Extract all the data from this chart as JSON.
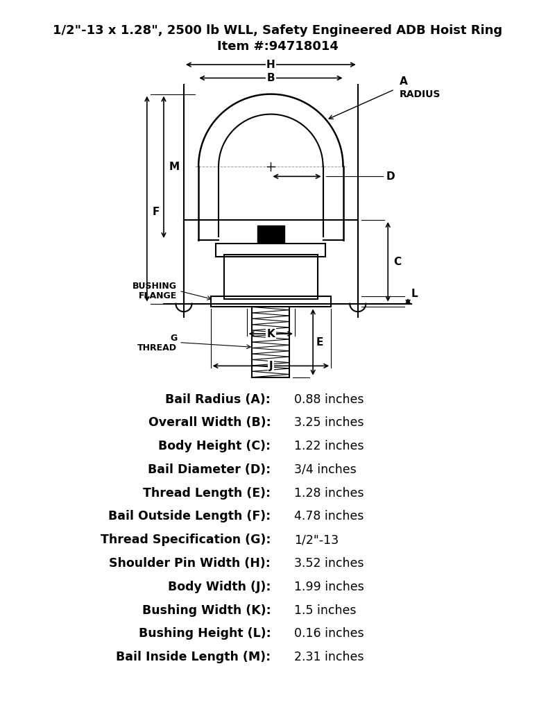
{
  "title_line1": "1/2\"-13 x 1.28\", 2500 lb WLL, Safety Engineered ADB Hoist Ring",
  "title_line2": "Item #:94718014",
  "specs": [
    [
      "Bail Radius (A):",
      "0.88 inches"
    ],
    [
      "Overall Width (B):",
      "3.25 inches"
    ],
    [
      "Body Height (C):",
      "1.22 inches"
    ],
    [
      "Bail Diameter (D):",
      "3/4 inches"
    ],
    [
      "Thread Length (E):",
      "1.28 inches"
    ],
    [
      "Bail Outside Length (F):",
      "4.78 inches"
    ],
    [
      "Thread Specification (G):",
      "1/2\"-13"
    ],
    [
      "Shoulder Pin Width (H):",
      "3.52 inches"
    ],
    [
      "Body Width (J):",
      "1.99 inches"
    ],
    [
      "Bushing Width (K):",
      "1.5 inches"
    ],
    [
      "Bushing Height (L):",
      "0.16 inches"
    ],
    [
      "Bail Inside Length (M):",
      "2.31 inches"
    ]
  ],
  "bg_color": "#ffffff",
  "text_color": "#000000",
  "line_color": "#000000",
  "title_fontsize": 13,
  "spec_fontsize": 12.5
}
